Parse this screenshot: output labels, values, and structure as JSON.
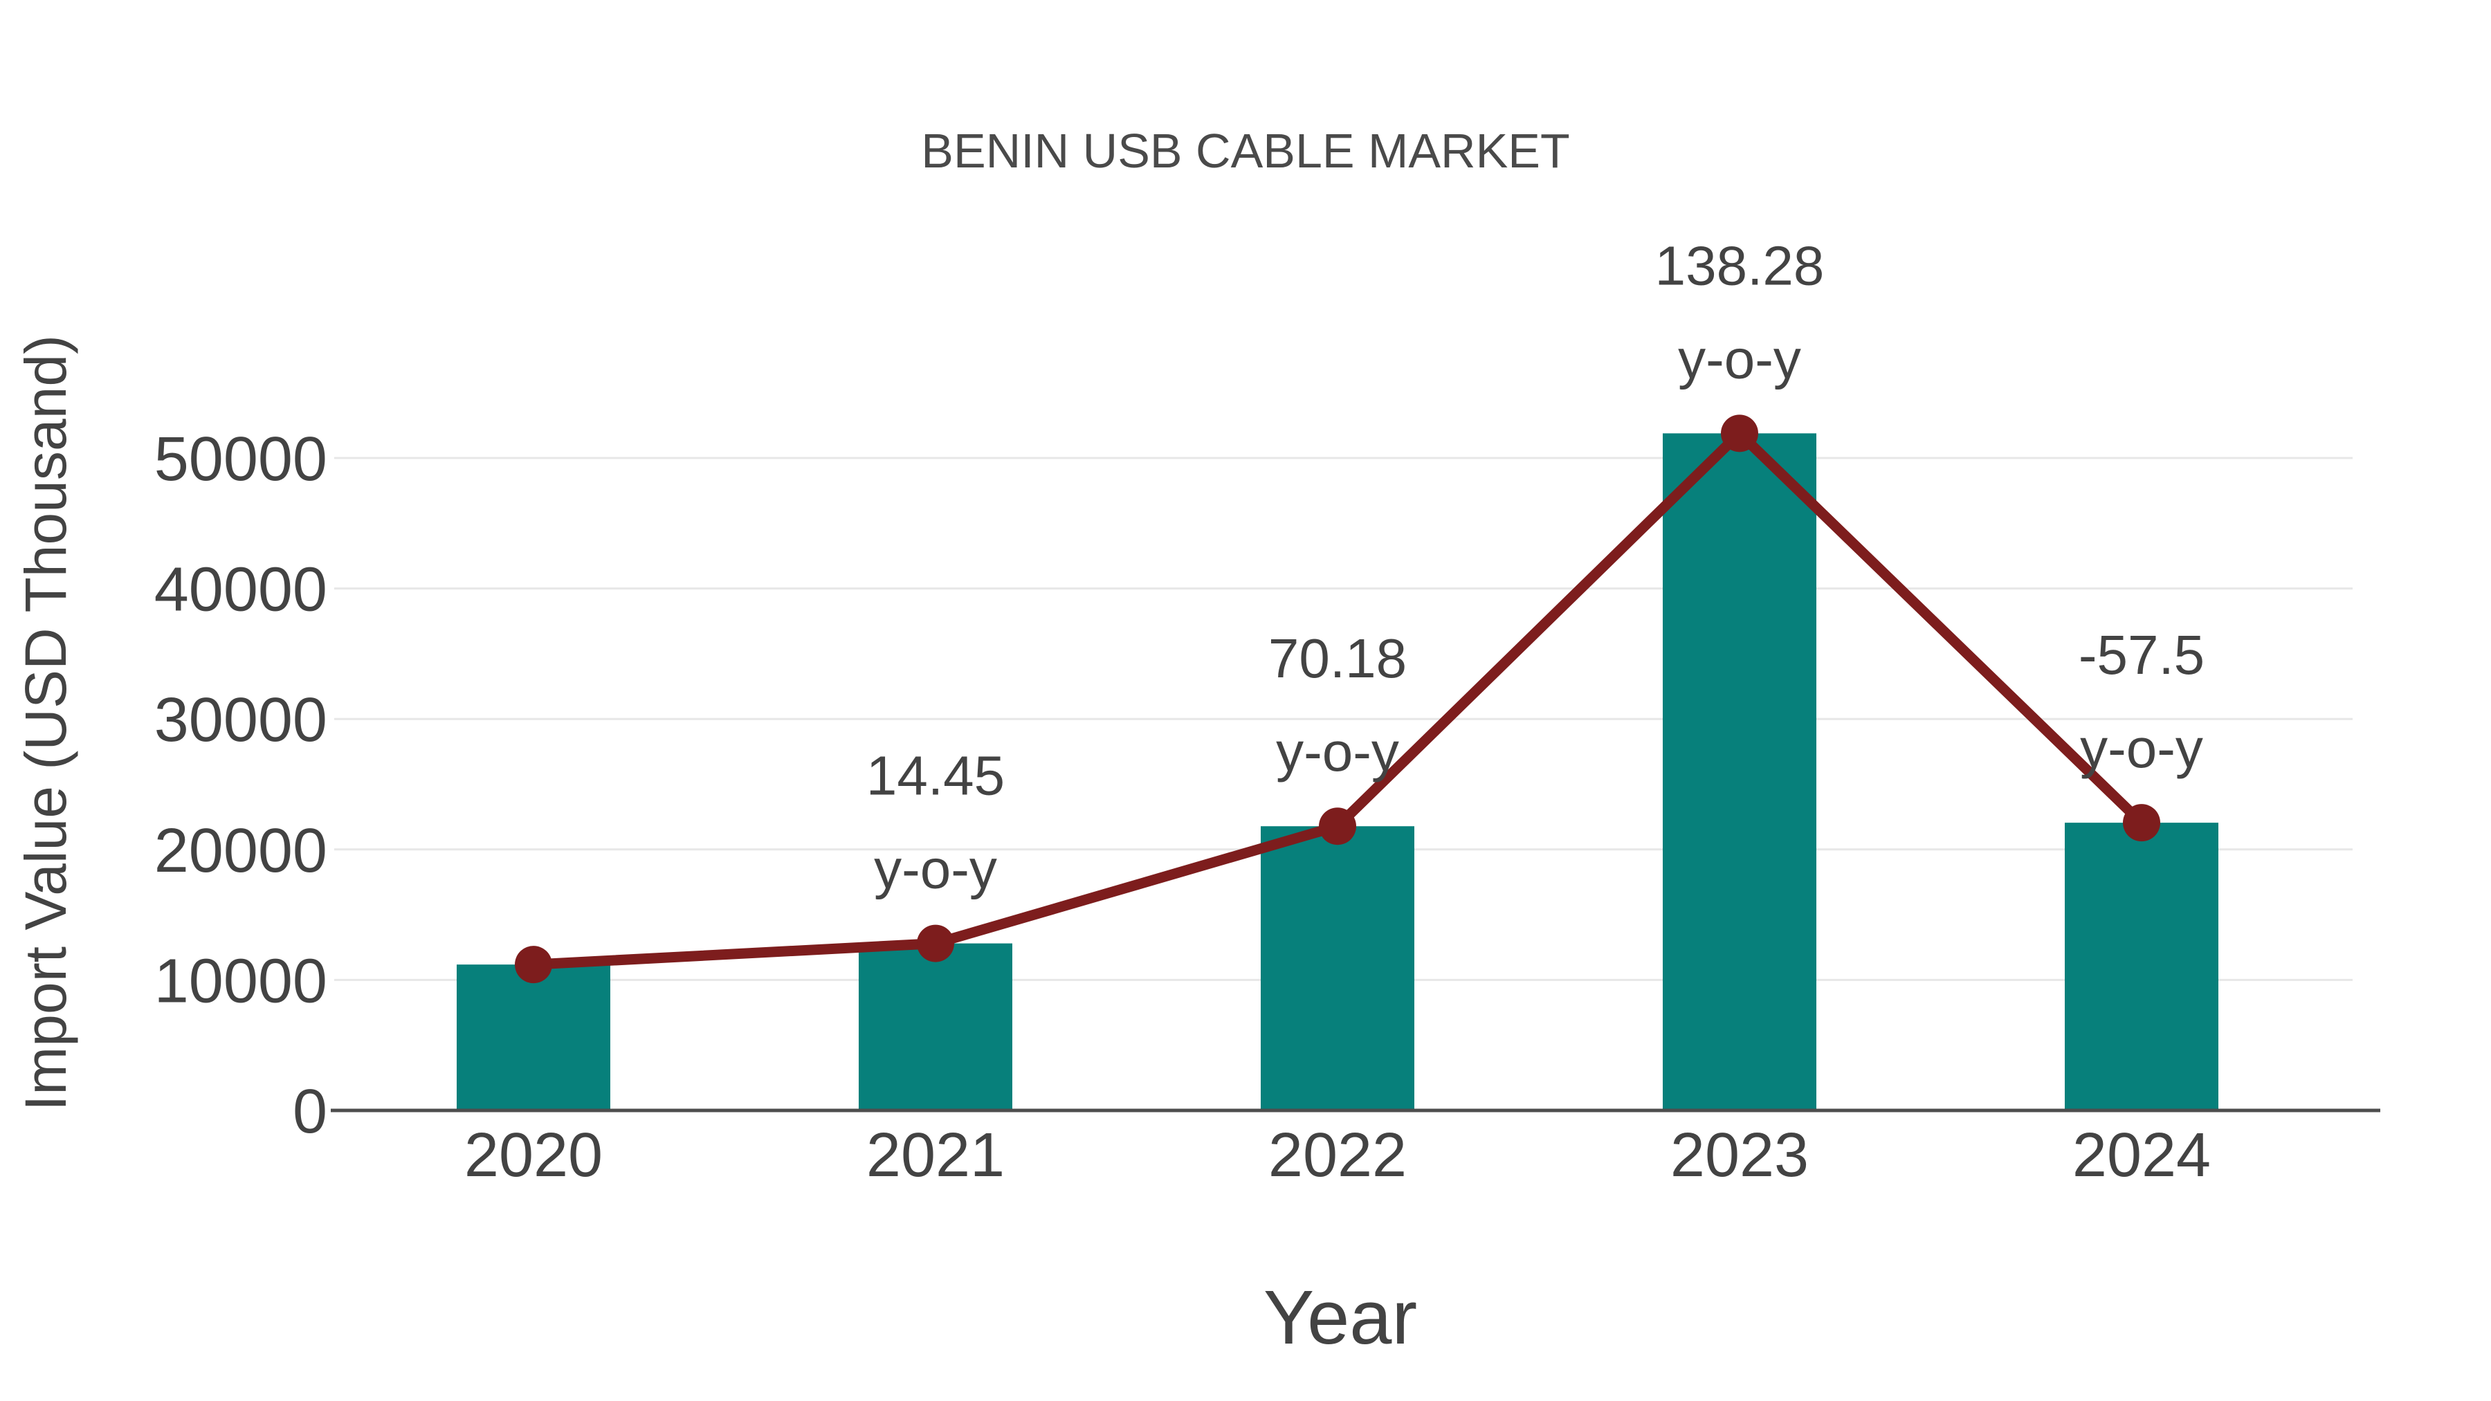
{
  "chart_data": {
    "type": "bar",
    "title": "BENIN USB CABLE MARKET",
    "xlabel": "Year",
    "ylabel": "Import Value (USD Thousand)",
    "categories": [
      "2020",
      "2021",
      "2022",
      "2023",
      "2024"
    ],
    "series": [
      {
        "name": "Import Value (USD Thousand)",
        "type": "bar",
        "color": "#07807b",
        "values": [
          11180,
          12800,
          21780,
          51890,
          22050
        ]
      },
      {
        "name": "Trend line over bar tops",
        "type": "line",
        "color": "#7d1d1d",
        "values": [
          11180,
          12800,
          21780,
          51890,
          22050
        ]
      }
    ],
    "yoy_percent": [
      null,
      14.45,
      70.18,
      138.28,
      -57.5
    ],
    "annotations": [
      {
        "category": "2021",
        "line1": "14.45",
        "line2": "y-o-y"
      },
      {
        "category": "2022",
        "line1": "70.18",
        "line2": "y-o-y"
      },
      {
        "category": "2023",
        "line1": "138.28",
        "line2": "y-o-y"
      },
      {
        "category": "2024",
        "line1": "-57.5",
        "line2": "y-o-y"
      }
    ],
    "ylim": [
      0,
      55000
    ],
    "yticks": [
      0,
      10000,
      20000,
      30000,
      40000,
      50000
    ],
    "ytick_labels": [
      "0",
      "10000",
      "20000",
      "30000",
      "40000",
      "50000"
    ],
    "grid": true,
    "legend_position": "none"
  },
  "colors": {
    "bar_fill": "#07807b",
    "line_stroke": "#7d1d1d",
    "marker_fill": "#7d1d1d",
    "gridline": "#e7e7e7",
    "axis_line": "#4d4d4d",
    "text": "#434343",
    "background": "#ffffff"
  }
}
